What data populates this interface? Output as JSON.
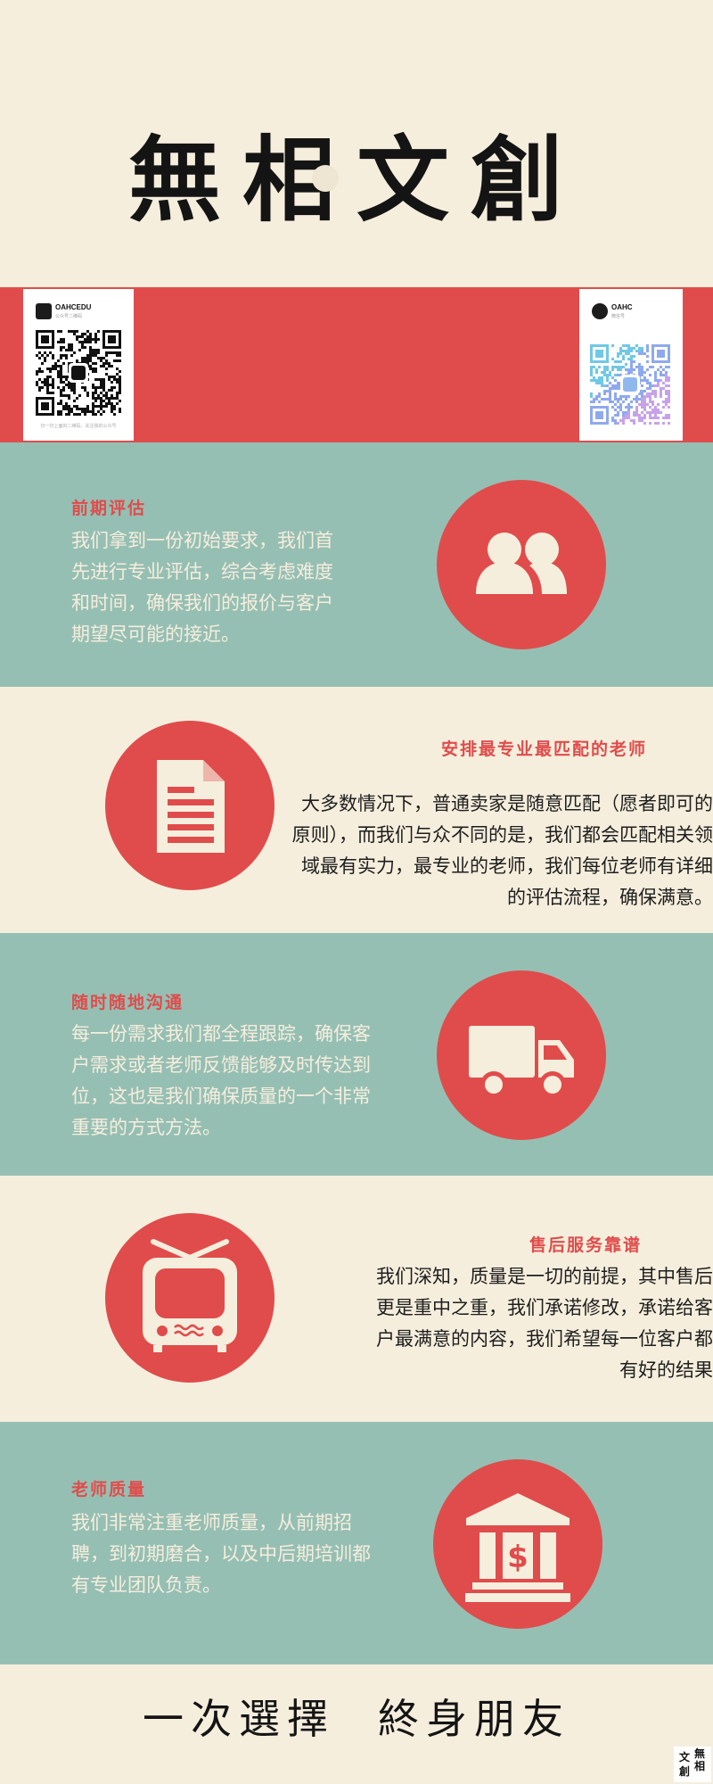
{
  "header": {
    "title": "無相文創"
  },
  "qr_codes": {
    "left": {
      "name": "OAHCEDU",
      "caption": "公众号二维码",
      "footer": "扫一扫上面的二维码，关注我的公众号"
    },
    "right": {
      "name": "OAHC",
      "caption": "微信号"
    }
  },
  "sections": [
    {
      "title": "前期评估",
      "body": "我们拿到一份初始要求，我们首先进行专业评估，综合考虑难度和时间，确保我们的报价与客户期望尽可能的接近。",
      "icon": "users-icon"
    },
    {
      "title": "安排最专业最匹配的老师",
      "body": "大多数情况下，普通卖家是随意匹配（愿者即可的原则），而我们与众不同的是，我们都会匹配相关领域最有实力，最专业的老师，我们每位老师有详细的评估流程，确保满意。",
      "icon": "document-icon"
    },
    {
      "title": "随时随地沟通",
      "body": "每一份需求我们都全程跟踪，确保客户需求或者老师反馈能够及时传达到位，这也是我们确保质量的一个非常重要的方式方法。",
      "icon": "truck-icon"
    },
    {
      "title": "售后服务靠谱",
      "body": "我们深知，质量是一切的前提，其中售后更是重中之重，我们承诺修改，承诺给客户最满意的内容，我们希望每一位客户都有好的结果",
      "icon": "tv-icon"
    },
    {
      "title": "老师质量",
      "body": "我们非常注重老师质量，从前期招聘，到初期磨合，以及中后期培训都有专业团队负责。",
      "icon": "bank-icon"
    }
  ],
  "footer": {
    "slogan_part1": "一次選擇",
    "slogan_part2": "終身朋友",
    "seal": [
      "無",
      "相",
      "文",
      "創"
    ]
  },
  "colors": {
    "cream": "#f6eedd",
    "teal": "#96bfb4",
    "red": "#e04c4b",
    "ink": "#141414"
  }
}
